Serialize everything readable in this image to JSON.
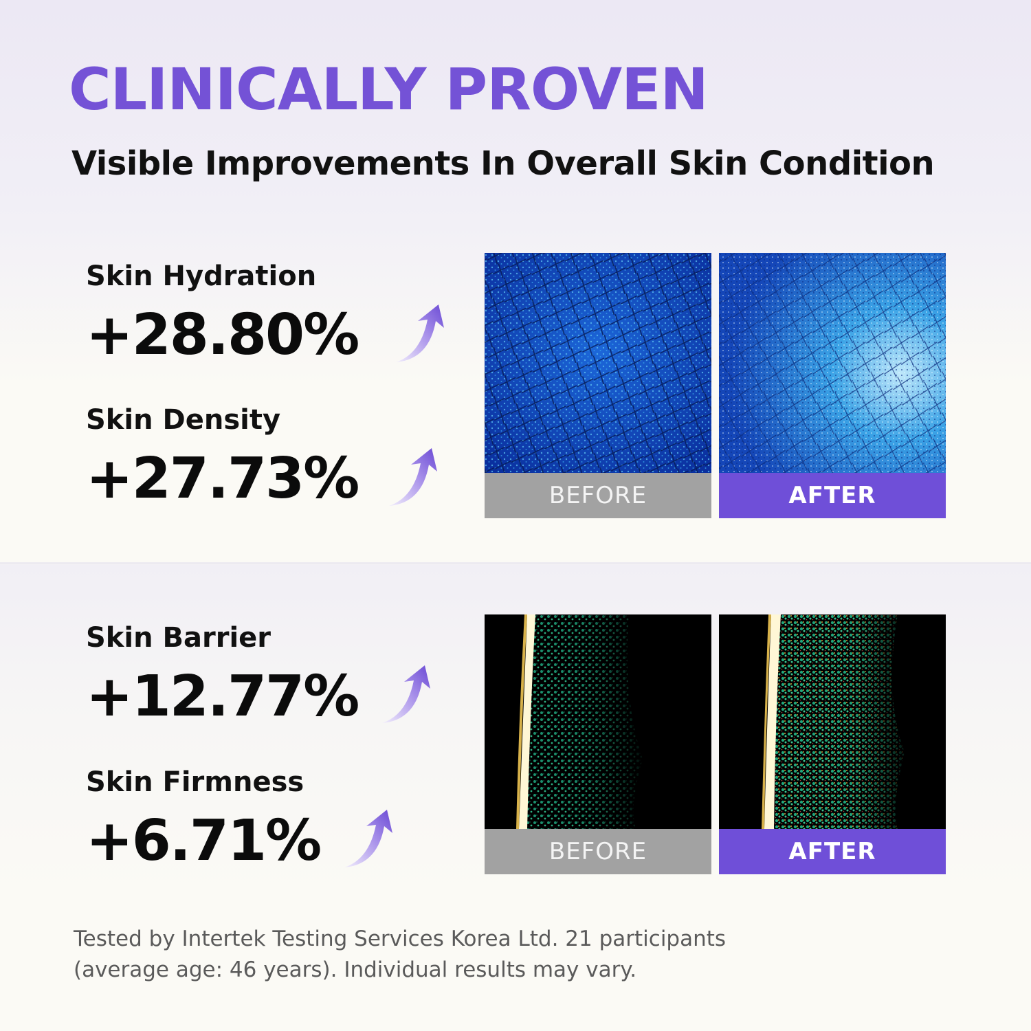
{
  "headline": "CLINICALLY PROVEN",
  "subheadline": "Visible Improvements In Overall Skin Condition",
  "colors": {
    "accent": "#7452d6",
    "after_tag": "#6f4fd8",
    "before_tag": "#a2a2a2"
  },
  "sections": [
    {
      "metrics": [
        {
          "label": "Skin Hydration",
          "value": "+28.80%",
          "icon": "arrow-up-icon"
        },
        {
          "label": "Skin Density",
          "value": "+27.73%",
          "icon": "arrow-up-icon"
        }
      ],
      "images": [
        {
          "tag": "BEFORE",
          "kind": "skin-surface-scan-image"
        },
        {
          "tag": "AFTER",
          "kind": "skin-surface-scan-image"
        }
      ]
    },
    {
      "metrics": [
        {
          "label": "Skin Barrier",
          "value": "+12.77%",
          "icon": "arrow-up-icon"
        },
        {
          "label": "Skin Firmness",
          "value": "+6.71%",
          "icon": "arrow-up-icon"
        }
      ],
      "images": [
        {
          "tag": "BEFORE",
          "kind": "skin-ultrasound-image"
        },
        {
          "tag": "AFTER",
          "kind": "skin-ultrasound-image"
        }
      ]
    }
  ],
  "footnote": {
    "line1": "Tested by Intertek Testing Services Korea Ltd. 21 participants",
    "line2": "(average age: 46 years). Individual results may vary."
  }
}
